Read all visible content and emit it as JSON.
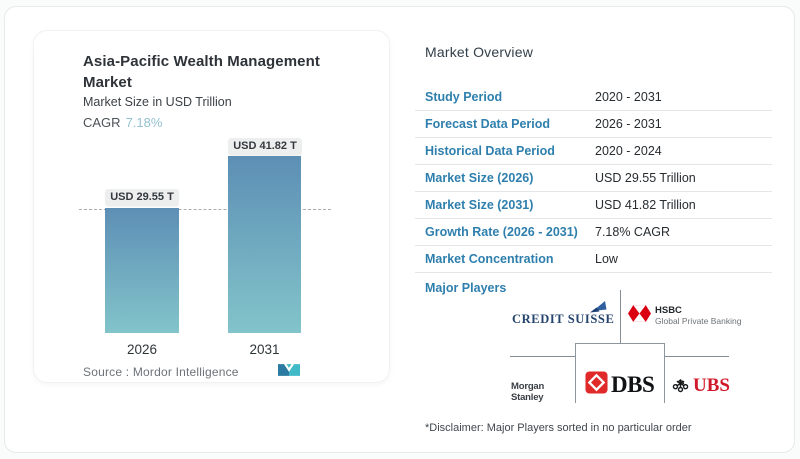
{
  "left_card": {
    "title": "Asia-Pacific Wealth Management Market",
    "subtitle": "Market Size in USD Trillion",
    "cagr_label": "CAGR",
    "cagr_value": "7.18%",
    "source_line": "Source :  Mordor Intelligence"
  },
  "chart_data": {
    "type": "bar",
    "categories": [
      "2026",
      "2031"
    ],
    "values": [
      29.55,
      41.82
    ],
    "value_labels": [
      "USD 29.55 T",
      "USD 41.82 T"
    ],
    "title": "Asia-Pacific Wealth Management Market",
    "xlabel": "",
    "ylabel": "Market Size in USD Trillion",
    "cagr": "7.18%",
    "reference_line_at": 29.55,
    "legend": "none",
    "grid": "off"
  },
  "overview": {
    "heading": "Market Overview",
    "rows": [
      {
        "label": "Study Period",
        "value": "2020 - 2031"
      },
      {
        "label": "Forecast Data Period",
        "value": "2026 - 2031"
      },
      {
        "label": "Historical Data Period",
        "value": "2020 - 2024"
      },
      {
        "label": "Market Size (2026)",
        "value": "USD 29.55 Trillion"
      },
      {
        "label": "Market Size (2031)",
        "value": "USD 41.82 Trillion"
      },
      {
        "label": "Growth Rate (2026 - 2031)",
        "value": "7.18% CAGR"
      },
      {
        "label": "Market Concentration",
        "value": "Low"
      }
    ],
    "major_players_label": "Major Players",
    "disclaimer": "*Disclaimer: Major Players sorted in no particular order"
  },
  "players": {
    "credit_suisse": "CREDIT SUISSE",
    "hsbc_name": "HSBC",
    "hsbc_sub": "Global Private Banking",
    "morgan_stanley": "Morgan Stanley",
    "dbs": "DBS",
    "ubs": "UBS"
  },
  "colors": {
    "accent_blue": "#2e7fad",
    "bar_gradient_top": "#5d8fb5",
    "bar_gradient_bottom": "#82c4ca",
    "cagr_value": "#94c1d2",
    "hsbc_red": "#db0011",
    "dbs_red": "#e02a2a",
    "ubs_red": "#d01a2c",
    "credit_suisse_navy": "#26456e",
    "mordor_teal": "#41bac7",
    "mordor_blue": "#2b7aa1"
  }
}
